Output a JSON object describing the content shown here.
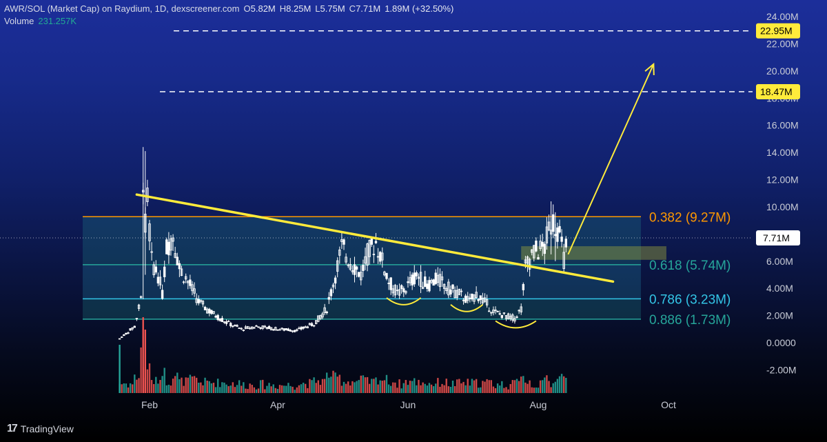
{
  "header": {
    "symbol": "AWR/SOL (Market Cap) on Raydium, 1D, dexscreener.com",
    "open_label": "O",
    "open": "5.82M",
    "high_label": "H",
    "high": "8.25M",
    "low_label": "L",
    "low": "5.75M",
    "close_label": "C",
    "close": "7.71M",
    "change": "1.89M (+32.50%)",
    "volume_label": "Volume",
    "volume_value": "231.257K"
  },
  "footer": {
    "logo": "17",
    "brand": "TradingView"
  },
  "colors": {
    "candle": "#ffffff",
    "volume_up": "#26a69a",
    "volume_down": "#ef5350",
    "fib_382": "#ff9800",
    "fib_618": "#26a69a",
    "fib_786": "#33c6e6",
    "fib_886": "#26a69a",
    "drawing": "#ffeb3b",
    "price_tag": "#ffeb3b",
    "last_price_tag": "#ffffff"
  },
  "chart_data": {
    "type": "candlestick",
    "title": "AWR/SOL (Market Cap) on Raydium, 1D, dexscreener.com",
    "y_axis": {
      "ticks": [
        -2000000,
        0,
        2000000,
        4000000,
        6000000,
        8000000,
        10000000,
        12000000,
        14000000,
        16000000,
        18000000,
        20000000,
        22000000,
        24000000
      ],
      "tick_labels": [
        "-2.00M",
        "0.0000",
        "2.00M",
        "4.00M",
        "6.00M",
        "8.00M",
        "10.00M",
        "12.00M",
        "14.00M",
        "16.00M",
        "18.00M",
        "20.00M",
        "22.00M",
        "24.00M"
      ],
      "range": [
        -3200000,
        25000000
      ]
    },
    "x_axis": {
      "tick_labels": [
        "Feb",
        "Apr",
        "Jun",
        "Aug",
        "Oct"
      ],
      "tick_dates": [
        "2024-02-01",
        "2024-04-01",
        "2024-06-01",
        "2024-08-01",
        "2024-10-01"
      ],
      "range": [
        "2024-01-15",
        "2024-11-01"
      ]
    },
    "series_path": [
      [
        "2024-01-18",
        0.3
      ],
      [
        "2024-01-22",
        0.8
      ],
      [
        "2024-01-25",
        1.2
      ],
      [
        "2024-01-28",
        3.2
      ],
      [
        "2024-01-29",
        12.5
      ],
      [
        "2024-01-30",
        8.5
      ],
      [
        "2024-01-31",
        10.5
      ],
      [
        "2024-02-02",
        6.0
      ],
      [
        "2024-02-05",
        5.0
      ],
      [
        "2024-02-07",
        3.6
      ],
      [
        "2024-02-09",
        7.0
      ],
      [
        "2024-02-12",
        8.0
      ],
      [
        "2024-02-15",
        5.5
      ],
      [
        "2024-02-19",
        4.5
      ],
      [
        "2024-02-24",
        3.0
      ],
      [
        "2024-03-01",
        2.2
      ],
      [
        "2024-03-08",
        1.5
      ],
      [
        "2024-03-15",
        1.0
      ],
      [
        "2024-03-22",
        1.2
      ],
      [
        "2024-04-01",
        1.0
      ],
      [
        "2024-04-10",
        0.9
      ],
      [
        "2024-04-18",
        1.4
      ],
      [
        "2024-04-24",
        2.5
      ],
      [
        "2024-04-28",
        5.0
      ],
      [
        "2024-05-01",
        7.0
      ],
      [
        "2024-05-05",
        6.0
      ],
      [
        "2024-05-10",
        5.0
      ],
      [
        "2024-05-13",
        6.5
      ],
      [
        "2024-05-17",
        7.4
      ],
      [
        "2024-05-20",
        6.0
      ],
      [
        "2024-05-23",
        4.5
      ],
      [
        "2024-05-27",
        3.6
      ],
      [
        "2024-05-31",
        4.0
      ],
      [
        "2024-06-05",
        5.0
      ],
      [
        "2024-06-10",
        4.2
      ],
      [
        "2024-06-15",
        4.7
      ],
      [
        "2024-06-20",
        4.0
      ],
      [
        "2024-06-25",
        3.6
      ],
      [
        "2024-06-30",
        3.0
      ],
      [
        "2024-07-03",
        3.6
      ],
      [
        "2024-07-07",
        3.0
      ],
      [
        "2024-07-11",
        2.3
      ],
      [
        "2024-07-16",
        2.0
      ],
      [
        "2024-07-21",
        1.8
      ],
      [
        "2024-07-24",
        2.5
      ],
      [
        "2024-07-26",
        5.5
      ],
      [
        "2024-07-29",
        6.5
      ],
      [
        "2024-08-01",
        6.8
      ],
      [
        "2024-08-04",
        7.0
      ],
      [
        "2024-08-07",
        9.0
      ],
      [
        "2024-08-10",
        8.5
      ],
      [
        "2024-08-13",
        6.2
      ],
      [
        "2024-08-15",
        7.71
      ]
    ],
    "fib_levels": [
      {
        "ratio": "0.382",
        "value": 9270000,
        "label": "0.382 (9.27M)"
      },
      {
        "ratio": "0.618",
        "value": 5740000,
        "label": "0.618 (5.74M)"
      },
      {
        "ratio": "0.786",
        "value": 3230000,
        "label": "0.786 (3.23M)"
      },
      {
        "ratio": "0.886",
        "value": 1730000,
        "label": "0.886 (1.73M)"
      }
    ],
    "price_lines": [
      {
        "value": 22950000,
        "label": "22.95M",
        "style": "dashed"
      },
      {
        "value": 18470000,
        "label": "18.47M",
        "style": "dashed"
      }
    ],
    "last_price": {
      "value": 7710000,
      "label": "7.71M"
    },
    "trendline": {
      "start": [
        "2024-01-26",
        10900000
      ],
      "end": [
        "2024-09-05",
        4500000
      ]
    },
    "projection_arrow": {
      "start": [
        "2024-08-15",
        6500000
      ],
      "end": [
        "2024-09-24",
        20500000
      ]
    },
    "support_zone": {
      "from": "2024-07-24",
      "to": "2024-09-30",
      "low": 6100000,
      "high": 7100000
    },
    "bottom_arcs": [
      {
        "from": "2024-05-22",
        "to": "2024-06-07",
        "value": 3100000
      },
      {
        "from": "2024-06-21",
        "to": "2024-07-06",
        "value": 2600000
      },
      {
        "from": "2024-07-12",
        "to": "2024-07-31",
        "value": 1400000
      }
    ]
  }
}
